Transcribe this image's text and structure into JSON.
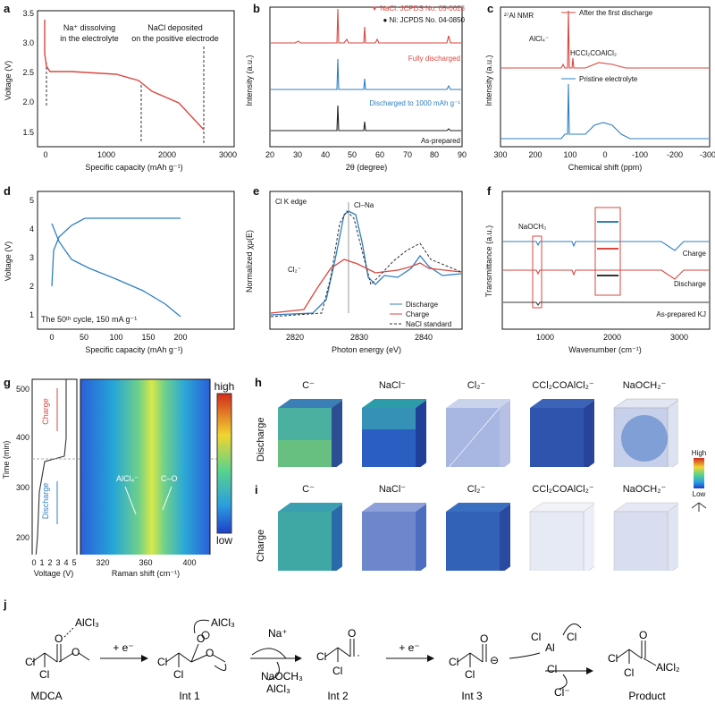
{
  "panel_letters": {
    "a": "a",
    "b": "b",
    "c": "c",
    "d": "d",
    "e": "e",
    "f": "f",
    "g": "g",
    "h": "h",
    "i": "i",
    "j": "j"
  },
  "panel_a": {
    "annotation_left": [
      "Na⁺ dissolving",
      "in the electrolyte"
    ],
    "annotation_right": [
      "NaCl deposited",
      "on the positive electrode"
    ],
    "xlabel": "Specific capacity (mAh g⁻¹)",
    "ylabel": "Voltage (V)",
    "xticks": [
      "0",
      "1000",
      "2000",
      "3000"
    ],
    "yticks": [
      "1.5",
      "2.0",
      "2.5",
      "3.0",
      "3.5"
    ],
    "colors": {
      "curve": "#d9473f"
    }
  },
  "panel_b": {
    "legend_nacl": "▼ NaCl: JCPDS No. 05-0628",
    "legend_ni": "● Ni: JCPDS No. 04-0850",
    "labels": [
      "Fully discharged",
      "Discharged to 1000 mAh g⁻¹",
      "As-prepared"
    ],
    "xlabel": "2θ (degree)",
    "ylabel": "Intensity (a.u.)",
    "xticks": [
      "20",
      "30",
      "40",
      "50",
      "60",
      "70",
      "80",
      "90"
    ],
    "colors": {
      "top": "#d9473f",
      "mid": "#2f7fc1",
      "bot": "#222222"
    }
  },
  "panel_c": {
    "title": "²⁷Al NMR",
    "legend_top": "After the first discharge",
    "legend_bot": "Pristine electrolyte",
    "peak1": "AlCl₄⁻",
    "peak2": "HCCl₂COAlCl₂",
    "xlabel": "Chemical shift (ppm)",
    "ylabel": "Intensity (a.u.)",
    "xticks": [
      "300",
      "200",
      "100",
      "0",
      "-100",
      "-200",
      "-300"
    ]
  },
  "panel_d": {
    "caption": "The 50ᵗʰ cycle, 150 mA g⁻¹",
    "xlabel": "Specific capacity (mAh g⁻¹)",
    "ylabel": "Voltage (V)",
    "xticks": [
      "0",
      "50",
      "100",
      "150",
      "200"
    ],
    "yticks": [
      "1",
      "2",
      "3",
      "4",
      "5"
    ]
  },
  "panel_e": {
    "title": "Cl K edge",
    "peak": "Cl–Na",
    "cl2": "Cl₂⁻",
    "legend": [
      "Discharge",
      "Charge",
      "NaCl standard"
    ],
    "xlabel": "Photon energy (eV)",
    "ylabel": "Normalized χμ(E)",
    "xticks": [
      "2820",
      "2830",
      "2840"
    ]
  },
  "panel_f": {
    "naoch3": "NaOCH₃",
    "labels": [
      "Charge",
      "Discharge",
      "As-prepared KJ"
    ],
    "xlabel": "Wavenumber (cm⁻¹)",
    "ylabel": "Transmittance (a.u.)",
    "xticks": [
      "1000",
      "2000",
      "3000"
    ]
  },
  "panel_g": {
    "ylabel": "Time (min)",
    "xlabel_left": "Voltage (V)",
    "xlabel_right": "Raman shift (cm⁻¹)",
    "yticks": [
      "200",
      "300",
      "400",
      "500"
    ],
    "xticks_left": [
      "0",
      "1",
      "2",
      "3",
      "4",
      "5"
    ],
    "xticks_right": [
      "320",
      "360",
      "400"
    ],
    "charge": "Charge",
    "discharge": "Discharge",
    "alcl4": "AlCl₄⁻",
    "co": "C–O",
    "scale_high": "high",
    "scale_low": "low"
  },
  "panel_h": {
    "row": "Discharge",
    "species": [
      "C⁻",
      "NaCl⁻",
      "Cl₂⁻",
      "CCl₂COAlCl₂⁻",
      "NaOCH₂⁻"
    ],
    "scale_high": "High",
    "scale_low": "Low"
  },
  "panel_i": {
    "row": "Charge",
    "species": [
      "C⁻",
      "NaCl⁻",
      "Cl₂⁻",
      "CCl₂COAlCl₂⁻",
      "NaOCH₂⁻"
    ]
  },
  "panel_j": {
    "names": [
      "MDCA",
      "Int 1",
      "Int 2",
      "Int 3",
      "Product"
    ],
    "arrow1": "+ e⁻",
    "arrow2_top": "Na⁺",
    "arrow2_bot1": "NaOCH₃",
    "arrow2_bot2": "AlCl₃",
    "arrow3": "+ e⁻",
    "arrow4_bot": "Cl⁻",
    "alcl3": "AlCl₃",
    "alcl2": "AlCl₂"
  }
}
